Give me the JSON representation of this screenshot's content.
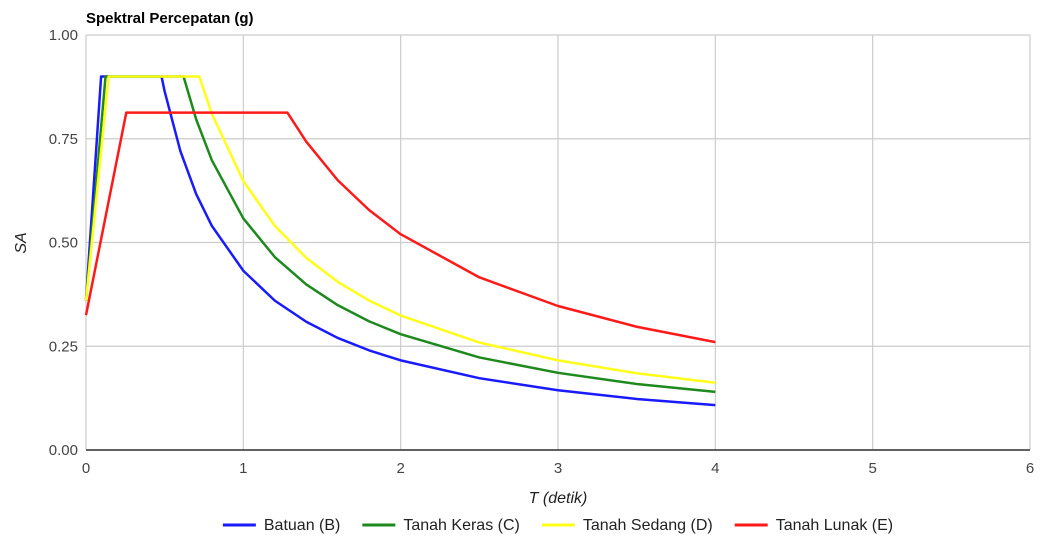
{
  "chart_data": {
    "type": "line",
    "title": "Spektral Percepatan (g)",
    "xlabel": "T (detik)",
    "ylabel": "SA",
    "xlim": [
      0,
      6
    ],
    "ylim": [
      0,
      1
    ],
    "x_ticks": [
      "0",
      "1",
      "2",
      "3",
      "4",
      "5",
      "6"
    ],
    "y_ticks": [
      "0.00",
      "0.25",
      "0.50",
      "0.75",
      "1.00"
    ],
    "grid": true,
    "legend_position": "bottom",
    "series": [
      {
        "name": "Batuan (B)",
        "color": "#1a1aff",
        "points": [
          [
            0,
            0.36
          ],
          [
            0.096,
            0.9
          ],
          [
            0.48,
            0.9
          ],
          [
            0.5,
            0.864
          ],
          [
            0.6,
            0.72
          ],
          [
            0.7,
            0.617
          ],
          [
            0.8,
            0.54
          ],
          [
            1.0,
            0.432
          ],
          [
            1.2,
            0.36
          ],
          [
            1.4,
            0.309
          ],
          [
            1.6,
            0.27
          ],
          [
            1.8,
            0.24
          ],
          [
            2.0,
            0.216
          ],
          [
            2.5,
            0.173
          ],
          [
            3.0,
            0.144
          ],
          [
            3.5,
            0.123
          ],
          [
            4.0,
            0.108
          ]
        ]
      },
      {
        "name": "Tanah Keras (C)",
        "color": "#1e8a1e",
        "points": [
          [
            0,
            0.36
          ],
          [
            0.124,
            0.9
          ],
          [
            0.62,
            0.9
          ],
          [
            0.7,
            0.797
          ],
          [
            0.8,
            0.698
          ],
          [
            1.0,
            0.558
          ],
          [
            1.2,
            0.465
          ],
          [
            1.4,
            0.399
          ],
          [
            1.6,
            0.349
          ],
          [
            1.8,
            0.31
          ],
          [
            2.0,
            0.279
          ],
          [
            2.5,
            0.223
          ],
          [
            3.0,
            0.186
          ],
          [
            3.5,
            0.159
          ],
          [
            4.0,
            0.14
          ]
        ]
      },
      {
        "name": "Tanah Sedang (D)",
        "color": "#ffff1a",
        "points": [
          [
            0,
            0.36
          ],
          [
            0.144,
            0.9
          ],
          [
            0.72,
            0.9
          ],
          [
            0.8,
            0.81
          ],
          [
            1.0,
            0.648
          ],
          [
            1.2,
            0.54
          ],
          [
            1.4,
            0.463
          ],
          [
            1.6,
            0.405
          ],
          [
            1.8,
            0.36
          ],
          [
            2.0,
            0.324
          ],
          [
            2.5,
            0.259
          ],
          [
            3.0,
            0.216
          ],
          [
            3.5,
            0.185
          ],
          [
            4.0,
            0.162
          ]
        ]
      },
      {
        "name": "Tanah Lunak (E)",
        "color": "#ff1a1a",
        "points": [
          [
            0,
            0.325
          ],
          [
            0.256,
            0.813
          ],
          [
            1.28,
            0.813
          ],
          [
            1.4,
            0.743
          ],
          [
            1.6,
            0.65
          ],
          [
            1.8,
            0.578
          ],
          [
            2.0,
            0.52
          ],
          [
            2.5,
            0.416
          ],
          [
            3.0,
            0.347
          ],
          [
            3.5,
            0.297
          ],
          [
            4.0,
            0.26
          ]
        ]
      }
    ]
  }
}
